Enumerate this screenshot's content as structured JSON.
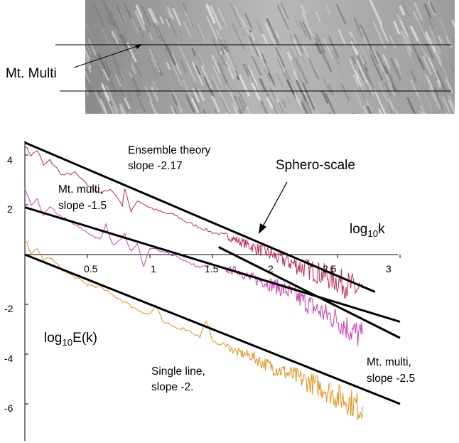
{
  "image_label": "Mt. Multi",
  "chart_data": {
    "type": "line",
    "xlim": [
      0,
      3.05
    ],
    "ylim": [
      -7.4,
      4.9
    ],
    "x_ticks": [
      "0.5",
      "1",
      "1.5",
      "2",
      "2.5",
      "3"
    ],
    "y_ticks": [
      "4",
      "2",
      "-2",
      "-4",
      "-6"
    ],
    "x_tick_values": [
      0.5,
      1,
      1.5,
      2,
      2.5,
      3
    ],
    "y_tick_values": [
      4,
      2,
      -2,
      -4,
      -6
    ],
    "xlabel": {
      "base": "log",
      "sub": "10",
      "rest": "k"
    },
    "ylabel": {
      "base": "log",
      "sub": "10",
      "rest": "E(k)"
    },
    "grid": false,
    "series": [
      {
        "color": "#c02a54",
        "points": [
          [
            0.0,
            4.4
          ],
          [
            0.05,
            4.0
          ],
          [
            0.1,
            4.2
          ],
          [
            0.15,
            3.6
          ],
          [
            0.2,
            3.8
          ],
          [
            0.3,
            3.2
          ],
          [
            0.4,
            3.3
          ],
          [
            0.5,
            2.8
          ],
          [
            0.6,
            2.5
          ],
          [
            0.7,
            2.6
          ],
          [
            0.78,
            2.0
          ],
          [
            0.8,
            2.7
          ],
          [
            0.85,
            1.7
          ],
          [
            0.9,
            2.2
          ],
          [
            1.0,
            1.9
          ],
          [
            1.1,
            1.7
          ],
          [
            1.2,
            1.6
          ],
          [
            1.3,
            1.3
          ],
          [
            1.4,
            1.1
          ],
          [
            1.5,
            0.9
          ],
          [
            1.6,
            0.8
          ],
          [
            1.7,
            0.6
          ],
          [
            1.8,
            0.4
          ],
          [
            1.9,
            0.2
          ],
          [
            2.0,
            0.0
          ],
          [
            2.1,
            -0.2
          ],
          [
            2.2,
            -0.4
          ],
          [
            2.3,
            -0.55
          ],
          [
            2.4,
            -0.75
          ],
          [
            2.5,
            -0.95
          ],
          [
            2.6,
            -1.15
          ],
          [
            2.7,
            -1.35
          ]
        ]
      },
      {
        "color": "#cf3fb8",
        "points": [
          [
            0.0,
            2.6
          ],
          [
            0.05,
            2.0
          ],
          [
            0.1,
            2.2
          ],
          [
            0.15,
            1.6
          ],
          [
            0.2,
            1.9
          ],
          [
            0.3,
            1.5
          ],
          [
            0.4,
            1.2
          ],
          [
            0.5,
            0.9
          ],
          [
            0.6,
            0.6
          ],
          [
            0.65,
            1.2
          ],
          [
            0.7,
            0.4
          ],
          [
            0.8,
            0.8
          ],
          [
            0.85,
            0.1
          ],
          [
            0.9,
            0.5
          ],
          [
            0.95,
            -0.5
          ],
          [
            1.0,
            0.3
          ],
          [
            1.1,
            0.1
          ],
          [
            1.2,
            0.0
          ],
          [
            1.3,
            -0.3
          ],
          [
            1.4,
            -0.5
          ],
          [
            1.5,
            -0.4
          ],
          [
            1.6,
            -0.6
          ],
          [
            1.7,
            -0.6
          ],
          [
            1.8,
            -0.9
          ],
          [
            1.9,
            -1.0
          ],
          [
            2.0,
            -1.2
          ],
          [
            2.1,
            -1.4
          ],
          [
            2.2,
            -1.7
          ],
          [
            2.3,
            -2.0
          ],
          [
            2.4,
            -2.3
          ],
          [
            2.5,
            -2.5
          ],
          [
            2.6,
            -2.9
          ],
          [
            2.7,
            -3.2
          ]
        ]
      },
      {
        "color": "#e8901c",
        "points": [
          [
            0.0,
            0.6
          ],
          [
            0.05,
            0.1
          ],
          [
            0.1,
            0.2
          ],
          [
            0.15,
            -0.2
          ],
          [
            0.2,
            -0.1
          ],
          [
            0.3,
            -0.6
          ],
          [
            0.4,
            -0.9
          ],
          [
            0.5,
            -1.2
          ],
          [
            0.6,
            -1.3
          ],
          [
            0.7,
            -1.6
          ],
          [
            0.8,
            -1.9
          ],
          [
            0.9,
            -2.2
          ],
          [
            1.0,
            -2.4
          ],
          [
            1.05,
            -2.0
          ],
          [
            1.1,
            -2.7
          ],
          [
            1.2,
            -2.9
          ],
          [
            1.3,
            -3.0
          ],
          [
            1.4,
            -3.3
          ],
          [
            1.45,
            -2.6
          ],
          [
            1.5,
            -3.5
          ],
          [
            1.6,
            -3.6
          ],
          [
            1.7,
            -3.9
          ],
          [
            1.8,
            -4.0
          ],
          [
            1.9,
            -4.3
          ],
          [
            2.0,
            -4.5
          ],
          [
            2.1,
            -4.7
          ],
          [
            2.2,
            -4.9
          ],
          [
            2.3,
            -5.1
          ],
          [
            2.4,
            -5.3
          ],
          [
            2.5,
            -5.6
          ],
          [
            2.6,
            -5.8
          ],
          [
            2.7,
            -6.1
          ]
        ]
      }
    ],
    "fits": [
      {
        "x": [
          0.0,
          2.8
        ],
        "y": [
          4.5,
          -1.5
        ]
      },
      {
        "x": [
          0.0,
          3.0
        ],
        "y": [
          1.9,
          -2.7
        ]
      },
      {
        "x": [
          0.0,
          3.0
        ],
        "y": [
          0.0,
          -6.0
        ]
      },
      {
        "x": [
          1.55,
          3.0
        ],
        "y": [
          0.3,
          -3.35
        ]
      }
    ]
  },
  "annotations": {
    "ensemble": [
      "Ensemble theory",
      "slope -2.17"
    ],
    "sphero": "Sphero-scale",
    "mt_multi_15": [
      "Mt. multi,",
      "slope -1.5"
    ],
    "single_line": [
      "Single line,",
      "slope -2."
    ],
    "mt_multi_25": [
      "Mt. multi,",
      "slope -2.5"
    ]
  }
}
